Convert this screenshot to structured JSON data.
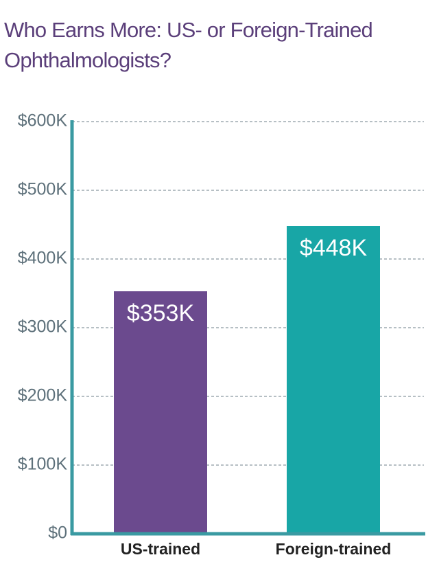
{
  "chart_data": {
    "type": "bar",
    "title": "Who Earns More: US- or Foreign-Trained Ophthalmologists?",
    "categories": [
      "US-trained",
      "Foreign-trained"
    ],
    "values": [
      353000,
      448000
    ],
    "value_labels": [
      "$353K",
      "$448K"
    ],
    "colors": [
      "#6b4a8e",
      "#18a6a6"
    ],
    "ylim": [
      0,
      600000
    ],
    "yticks": [
      {
        "value": 0,
        "label": "$0"
      },
      {
        "value": 100000,
        "label": "$100K"
      },
      {
        "value": 200000,
        "label": "$200K"
      },
      {
        "value": 300000,
        "label": "$300K"
      },
      {
        "value": 400000,
        "label": "$400K"
      },
      {
        "value": 500000,
        "label": "$500K"
      },
      {
        "value": 600000,
        "label": "$600K"
      }
    ],
    "grid": true
  }
}
